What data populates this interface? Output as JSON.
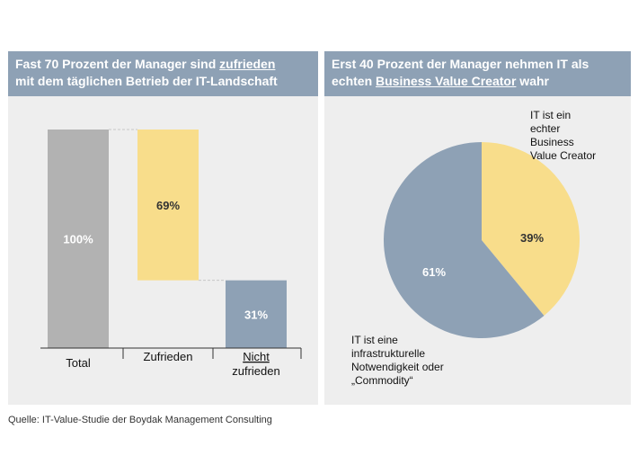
{
  "panels": {
    "left": {
      "title_line1_pre": "Fast 70 Prozent der Manager sind ",
      "title_line1_emph": "zufrieden",
      "title_line2": "mit dem täglichen Betrieb der IT-Landschaft"
    },
    "right": {
      "title_line1": "Erst 40 Prozent der Manager nehmen IT als",
      "title_line2_pre": "echten ",
      "title_line2_emph": "Business Value Creator",
      "title_line2_post": " wahr"
    }
  },
  "source": "Quelle: IT-Value-Studie der Boydak Management Consulting",
  "colors": {
    "grey": "#b2b2b2",
    "yellow": "#f8dd8b",
    "blue": "#8ea1b5"
  },
  "chart_data": [
    {
      "type": "bar",
      "subtype": "waterfall",
      "categories": [
        "Total",
        "Zufrieden",
        "Nicht zufrieden"
      ],
      "category_lines": [
        [
          "Total"
        ],
        [
          "Zufrieden"
        ],
        [
          "Nicht",
          "zufrieden"
        ]
      ],
      "values": [
        100,
        69,
        31
      ],
      "value_labels": [
        "100%",
        "69%",
        "31%"
      ],
      "bar_colors": [
        "grey",
        "yellow",
        "blue"
      ],
      "underlined_category": 2,
      "ylim": [
        0,
        100
      ]
    },
    {
      "type": "pie",
      "slices": [
        {
          "label": "IT ist ein echter Business Value Creator",
          "label_lines": [
            "IT ist ein",
            "echter",
            "Business",
            "Value Creator"
          ],
          "value": 39,
          "value_label": "39%",
          "color": "yellow"
        },
        {
          "label": "IT ist eine infrastrukturelle Notwendigkeit oder „Commodity“",
          "label_lines": [
            "IT ist eine",
            "infrastrukturelle",
            "Notwendigkeit oder",
            "„Commodity“"
          ],
          "value": 61,
          "value_label": "61%",
          "color": "blue"
        }
      ]
    }
  ]
}
